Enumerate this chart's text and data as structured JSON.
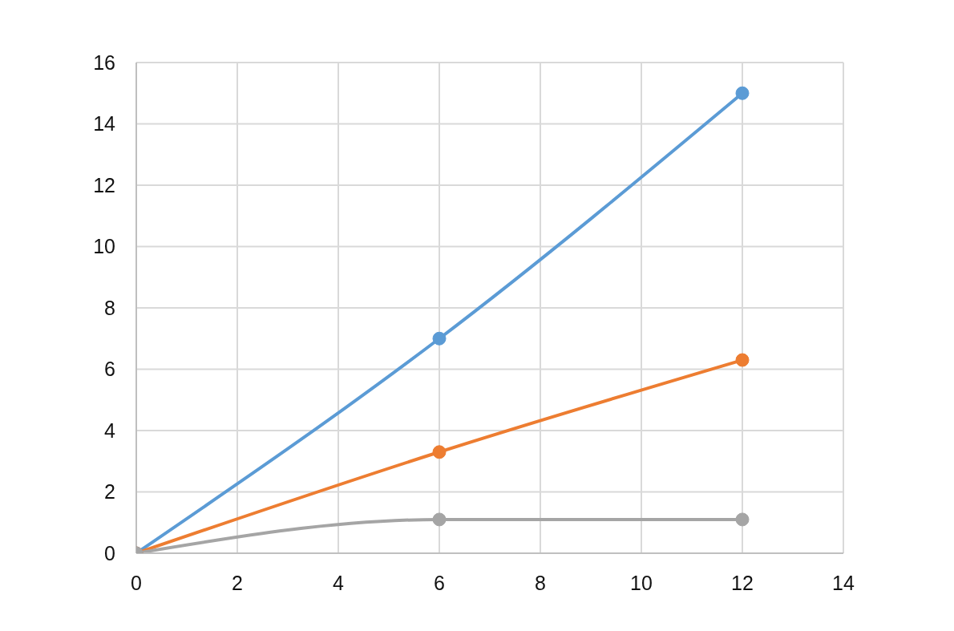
{
  "chart_data": {
    "type": "line",
    "x": [
      0,
      6,
      12
    ],
    "series": [
      {
        "color": "#5b9bd5",
        "values": [
          0,
          7,
          15
        ]
      },
      {
        "color": "#ed7d31",
        "values": [
          0,
          3.3,
          6.3
        ]
      },
      {
        "color": "#a5a5a5",
        "values": [
          0,
          1.1,
          1.1
        ]
      }
    ],
    "xlim": [
      0,
      14
    ],
    "xticks": [
      0,
      2,
      4,
      6,
      8,
      10,
      12,
      14
    ],
    "ylim": [
      0,
      16
    ],
    "yticks": [
      0,
      2,
      4,
      6,
      8,
      10,
      12,
      14,
      16
    ],
    "grid": true,
    "marker": "circle",
    "line_style": "solid"
  }
}
